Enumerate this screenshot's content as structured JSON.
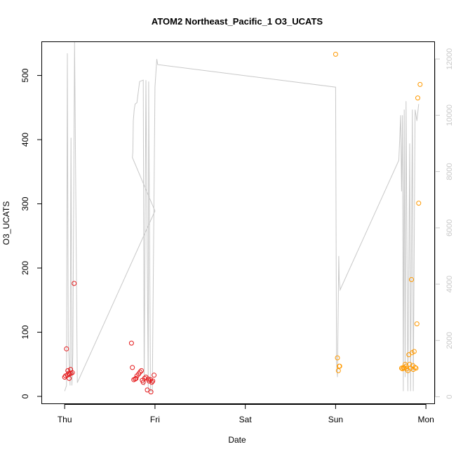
{
  "chart_data": {
    "type": "scatter",
    "title": "ATOM2 Northeast_Pacific_1 O3_UCATS",
    "xlabel": "Date",
    "ylabel": "O3_UCATS",
    "x_ticks": [
      "Thu",
      "Fri",
      "Sat",
      "Sun",
      "Mon"
    ],
    "xlim_days": [
      -0.25,
      4.1
    ],
    "ylim": [
      -12,
      552
    ],
    "y_ticks": [
      0,
      100,
      200,
      300,
      400,
      500
    ],
    "right_axis": {
      "ticks": [
        0,
        2000,
        4000,
        6000,
        8000,
        10000,
        12000
      ],
      "ylim": [
        -260,
        12600
      ],
      "color": "#c8c8c8"
    },
    "grid": false,
    "legend": "none",
    "series": [
      {
        "color": "#e41a1c",
        "points": [
          [
            0.0,
            30
          ],
          [
            0.01,
            32
          ],
          [
            0.02,
            74
          ],
          [
            0.03,
            33
          ],
          [
            0.035,
            40
          ],
          [
            0.045,
            36
          ],
          [
            0.05,
            28
          ],
          [
            0.055,
            35
          ],
          [
            0.065,
            42
          ],
          [
            0.07,
            36
          ],
          [
            0.085,
            37
          ],
          [
            0.105,
            176
          ],
          [
            0.74,
            83
          ],
          [
            0.75,
            45
          ],
          [
            0.765,
            26
          ],
          [
            0.78,
            27
          ],
          [
            0.79,
            28
          ],
          [
            0.8,
            32
          ],
          [
            0.82,
            35
          ],
          [
            0.835,
            38
          ],
          [
            0.85,
            40
          ],
          [
            0.86,
            25
          ],
          [
            0.87,
            22
          ],
          [
            0.885,
            28
          ],
          [
            0.9,
            30
          ],
          [
            0.915,
            10
          ],
          [
            0.925,
            27
          ],
          [
            0.935,
            24
          ],
          [
            0.95,
            26
          ],
          [
            0.955,
            7
          ],
          [
            0.965,
            22
          ],
          [
            0.975,
            24
          ],
          [
            0.99,
            33
          ]
        ]
      },
      {
        "color": "#ff9900",
        "points": [
          [
            3.0,
            533
          ],
          [
            3.02,
            60
          ],
          [
            3.03,
            40
          ],
          [
            3.04,
            47
          ],
          [
            3.045,
            47
          ],
          [
            3.73,
            44
          ],
          [
            3.74,
            43
          ],
          [
            3.75,
            45
          ],
          [
            3.76,
            44
          ],
          [
            3.77,
            50
          ],
          [
            3.78,
            47
          ],
          [
            3.79,
            43
          ],
          [
            3.8,
            40
          ],
          [
            3.81,
            65
          ],
          [
            3.82,
            50
          ],
          [
            3.83,
            44
          ],
          [
            3.84,
            182
          ],
          [
            3.845,
            68
          ],
          [
            3.855,
            48
          ],
          [
            3.86,
            42
          ],
          [
            3.87,
            70
          ],
          [
            3.88,
            45
          ],
          [
            3.89,
            44
          ],
          [
            3.9,
            113
          ],
          [
            3.91,
            465
          ],
          [
            3.92,
            301
          ],
          [
            3.935,
            486
          ]
        ]
      }
    ],
    "line_series": {
      "axis": "right",
      "color": "#c8c8c8",
      "points": [
        [
          0.0,
          200
        ],
        [
          0.02,
          400
        ],
        [
          0.03,
          12200
        ],
        [
          0.04,
          2000
        ],
        [
          0.06,
          400
        ],
        [
          0.07,
          9200
        ],
        [
          0.08,
          400
        ],
        [
          0.09,
          1500
        ],
        [
          0.11,
          12600
        ],
        [
          0.14,
          500
        ],
        [
          1.0,
          6600
        ],
        [
          0.75,
          8500
        ],
        [
          0.755,
          8700
        ],
        [
          0.76,
          9800
        ],
        [
          0.77,
          10200
        ],
        [
          0.78,
          10400
        ],
        [
          0.8,
          10450
        ],
        [
          0.83,
          11200
        ],
        [
          0.87,
          11250
        ],
        [
          0.88,
          400
        ],
        [
          0.9,
          11250
        ],
        [
          0.925,
          200
        ],
        [
          0.93,
          11200
        ],
        [
          0.95,
          200
        ],
        [
          0.97,
          200
        ],
        [
          1.0,
          11000
        ],
        [
          1.02,
          12000
        ],
        [
          1.03,
          11800
        ],
        [
          3.0,
          11000
        ],
        [
          3.01,
          1200
        ],
        [
          3.02,
          700
        ],
        [
          3.035,
          5000
        ],
        [
          3.04,
          4200
        ],
        [
          3.05,
          3800
        ],
        [
          3.7,
          8400
        ],
        [
          3.72,
          10000
        ],
        [
          3.73,
          7300
        ],
        [
          3.74,
          10000
        ],
        [
          3.75,
          200
        ],
        [
          3.76,
          10200
        ],
        [
          3.77,
          700
        ],
        [
          3.78,
          10500
        ],
        [
          3.8,
          200
        ],
        [
          3.82,
          9000
        ],
        [
          3.83,
          200
        ],
        [
          3.85,
          10200
        ],
        [
          3.86,
          200
        ],
        [
          3.88,
          10200
        ],
        [
          3.9,
          9800
        ],
        [
          3.92,
          10400
        ]
      ]
    }
  }
}
